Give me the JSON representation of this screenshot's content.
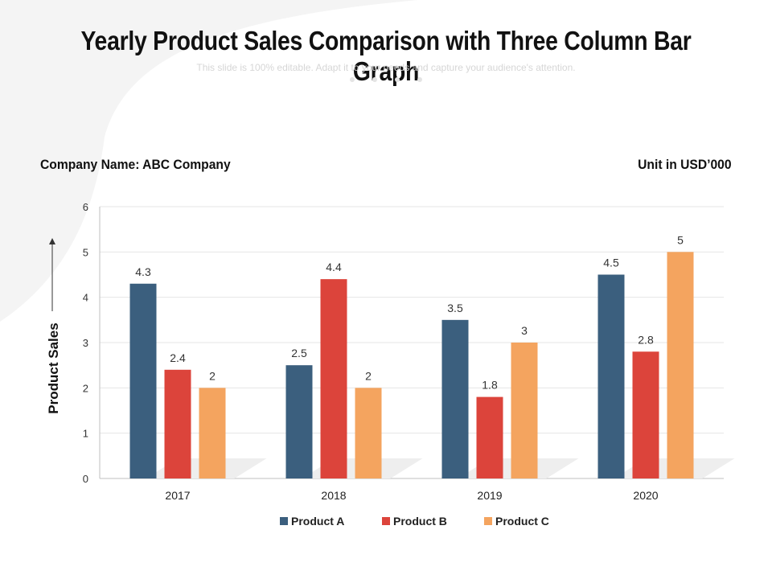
{
  "slide": {
    "title": "Yearly Product Sales Comparison with Three Column Bar Graph",
    "subtitle": "This slide is 100% editable. Adapt it to your needs and capture your audience's attention.",
    "company_label": "Company Name: ABC Company",
    "unit_label": "Unit in USD’000"
  },
  "chart_data": {
    "type": "bar",
    "categories": [
      "2017",
      "2018",
      "2019",
      "2020"
    ],
    "series": [
      {
        "name": "Product A",
        "values": [
          4.3,
          2.5,
          3.5,
          4.5
        ],
        "color": "#3b5f7e"
      },
      {
        "name": "Product B",
        "values": [
          2.4,
          4.4,
          1.8,
          2.8
        ],
        "color": "#dc443b"
      },
      {
        "name": "Product C",
        "values": [
          2,
          2,
          3,
          5
        ],
        "color": "#f4a45f"
      }
    ],
    "ylabel": "Product Sales",
    "xlabel": "",
    "ylim": [
      0,
      6
    ],
    "yticks": [
      0,
      1,
      2,
      3,
      4,
      5,
      6
    ],
    "grid": true,
    "legend_position": "bottom"
  }
}
